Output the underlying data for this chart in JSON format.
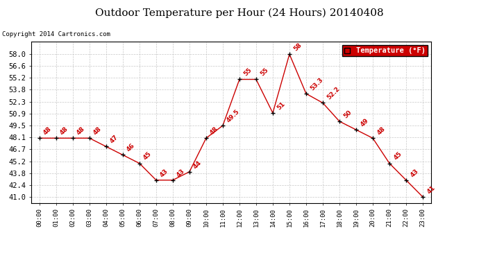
{
  "title": "Outdoor Temperature per Hour (24 Hours) 20140408",
  "copyright": "Copyright 2014 Cartronics.com",
  "legend_label": "Temperature (°F)",
  "hours": [
    0,
    1,
    2,
    3,
    4,
    5,
    6,
    7,
    8,
    9,
    10,
    11,
    12,
    13,
    14,
    15,
    16,
    17,
    18,
    19,
    20,
    21,
    22,
    23
  ],
  "temperatures": [
    48,
    48,
    48,
    48,
    47,
    46,
    45,
    43,
    43,
    44,
    48,
    49.5,
    55,
    55,
    51,
    58,
    53.3,
    52.2,
    50,
    49,
    48,
    45,
    43,
    41
  ],
  "ann_labels": [
    "48",
    "48",
    "48",
    "48",
    "47",
    "46",
    "45",
    "43",
    "43",
    "44",
    "48",
    "49.5",
    "55",
    "55",
    "51",
    "58",
    "53.3",
    "52.2",
    "50",
    "49",
    "48",
    "45",
    "43",
    "41"
  ],
  "x_labels": [
    "00:00",
    "01:00",
    "02:00",
    "03:00",
    "04:00",
    "05:00",
    "06:00",
    "07:00",
    "08:00",
    "09:00",
    "10:00",
    "11:00",
    "12:00",
    "13:00",
    "14:00",
    "15:00",
    "16:00",
    "17:00",
    "18:00",
    "19:00",
    "20:00",
    "21:00",
    "22:00",
    "23:00"
  ],
  "y_ticks": [
    41.0,
    42.4,
    43.8,
    45.2,
    46.7,
    48.1,
    49.5,
    50.9,
    52.3,
    53.8,
    55.2,
    56.6,
    58.0
  ],
  "y_tick_labels": [
    "41.0",
    "42.4",
    "43.8",
    "45.2",
    "46.7",
    "48.1",
    "49.5",
    "50.9",
    "52.3",
    "53.8",
    "55.2",
    "56.6",
    "58.0"
  ],
  "line_color": "#cc0000",
  "marker_color": "#000000",
  "background_color": "#ffffff",
  "grid_color": "#c8c8c8",
  "title_fontsize": 11,
  "legend_bg": "#cc0000",
  "legend_text_color": "#ffffff",
  "ylim_min": 40.3,
  "ylim_max": 59.5
}
